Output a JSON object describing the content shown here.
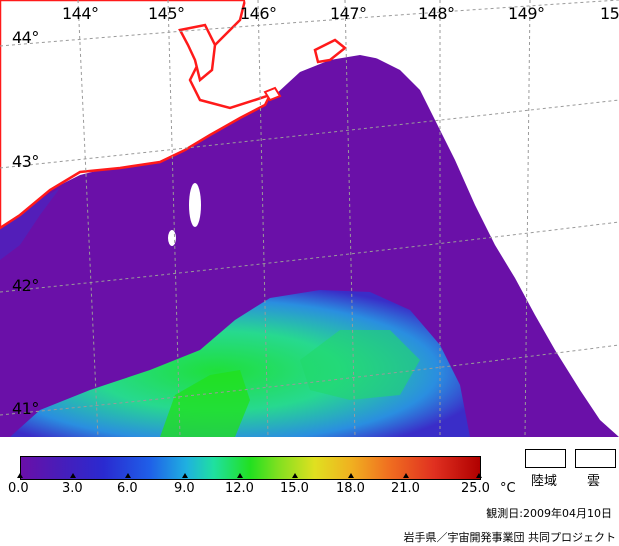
{
  "map": {
    "lon_labels": [
      "144°",
      "145°",
      "146°",
      "147°",
      "148°",
      "149°",
      "15"
    ],
    "lat_labels": [
      "44°",
      "43°",
      "42°",
      "41°"
    ],
    "colors": {
      "sea_cold": "#6a0fa8",
      "sea_mid": "#3a2dc8",
      "sea_warm": "#1fe07a",
      "coast": "#ff1a1a",
      "grid": "#9a9a9a",
      "land_cloud": "#ffffff"
    }
  },
  "legend": {
    "ticks": [
      "0.0",
      "3.0",
      "6.0",
      "9.0",
      "12.0",
      "15.0",
      "18.0",
      "21.0",
      "25.0"
    ],
    "unit": "°C",
    "land_label": "陸域",
    "cloud_label": "雲",
    "observation_date": "観測日:2009年04月10日",
    "credit": "岩手県／宇宙開発事業団 共同プロジェクト"
  }
}
